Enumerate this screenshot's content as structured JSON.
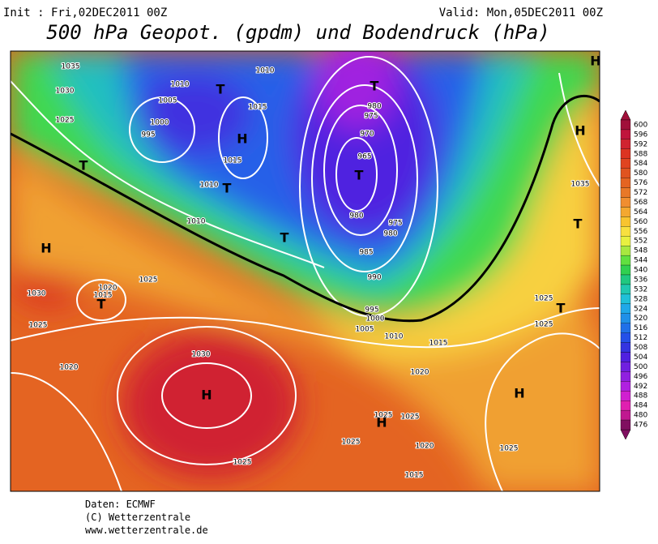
{
  "header": {
    "init": "Init : Fri,02DEC2011 00Z",
    "valid": "Valid: Mon,05DEC2011 00Z",
    "title": "500 hPa Geopot. (gpdm) und Bodendruck (hPa)"
  },
  "map_labels": [
    "1035",
    "1030",
    "1025",
    "1010",
    "1005",
    "1000",
    "995",
    "T",
    "1015",
    "H",
    "1015",
    "1010",
    "T",
    "1010",
    "T",
    "H",
    "1030",
    "1020",
    "1015",
    "T",
    "1025",
    "1025",
    "1020",
    "1030",
    "H",
    "1025",
    "1010",
    "T",
    "980",
    "975",
    "970",
    "965",
    "T",
    "980",
    "975",
    "980",
    "985",
    "990",
    "T",
    "995",
    "1000",
    "1005",
    "1010",
    "1015",
    "1020",
    "1025",
    "H",
    "1025",
    "1025",
    "1020",
    "1015",
    "H",
    "H",
    "1035",
    "T",
    "1025",
    "T",
    "1025",
    "H",
    "1025"
  ],
  "colorbar": {
    "levels": [
      600,
      596,
      592,
      588,
      584,
      580,
      576,
      572,
      568,
      564,
      560,
      556,
      552,
      548,
      544,
      540,
      536,
      532,
      528,
      524,
      520,
      516,
      512,
      508,
      504,
      500,
      496,
      492,
      488,
      484,
      480,
      476
    ],
    "colors": [
      "#a0103a",
      "#c0143c",
      "#d02430",
      "#dc3422",
      "#e04420",
      "#e05420",
      "#e46422",
      "#e87828",
      "#f08e30",
      "#f4a830",
      "#f8c430",
      "#f8e040",
      "#e8f040",
      "#a8e840",
      "#60e040",
      "#30d050",
      "#20c880",
      "#20c8b0",
      "#20c0d8",
      "#20a8e8",
      "#2090e8",
      "#2070e8",
      "#2450e8",
      "#3434e0",
      "#5020e0",
      "#7020e0",
      "#9020e0",
      "#b020e0",
      "#d020d0",
      "#e020b0",
      "#c01890",
      "#801060"
    ]
  },
  "footer": [
    "Daten: ECMWF",
    "(C) Wetterzentrale",
    "www.wetterzentrale.de"
  ]
}
